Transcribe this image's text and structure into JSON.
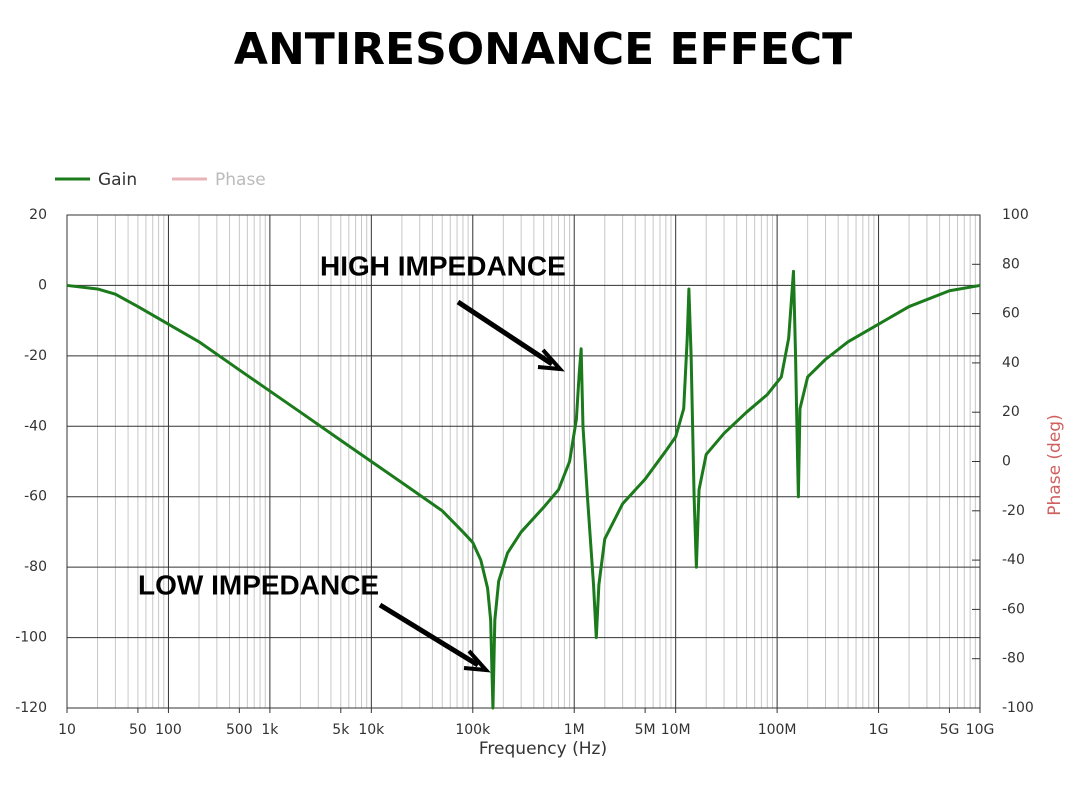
{
  "chart_data": {
    "type": "line",
    "title": "ANTIRESONANCE EFFECT",
    "xlabel": "Frequency (Hz)",
    "y2label": "Phase (deg)",
    "xscale": "log",
    "grid": true,
    "legend": "top-left",
    "annotations": [
      "HIGH IMPEDANCE",
      "LOW IMPEDANCE"
    ],
    "x": [
      10,
      20,
      30,
      50,
      100,
      200,
      500,
      1000,
      2000,
      5000,
      10000,
      20000,
      50000,
      80000,
      100000,
      120000,
      140000,
      150000,
      158000,
      165000,
      180000,
      220000,
      300000,
      500000,
      700000,
      900000,
      1050000,
      1120000,
      1170000,
      1220000,
      1350000,
      1550000,
      1650000,
      1750000,
      2000000,
      3000000,
      5000000,
      8000000,
      10000000,
      12000000,
      13000000,
      13500000,
      14200000,
      15200000,
      16000000,
      17000000,
      20000000,
      30000000,
      50000000,
      80000000,
      110000000,
      130000000,
      145000000,
      152000000,
      158000000,
      162000000,
      168000000,
      200000000,
      300000000,
      500000000,
      1000000000,
      2000000000,
      5000000000,
      10000000000
    ],
    "series": [
      {
        "name": "Gain",
        "color": "#1b7a1b",
        "values": [
          0,
          -1,
          -2.5,
          -6,
          -11,
          -16,
          -24,
          -30,
          -36,
          -44,
          -50,
          -56,
          -64,
          -70,
          -73,
          -78,
          -86,
          -95,
          -120,
          -95,
          -84,
          -76,
          -70,
          -63,
          -58,
          -50,
          -38,
          -25,
          -18,
          -40,
          -60,
          -85,
          -100,
          -85,
          -72,
          -62,
          -55,
          -47,
          -43,
          -35,
          -15,
          -1,
          -20,
          -60,
          -80,
          -58,
          -48,
          -42,
          -36,
          -31,
          -26,
          -15,
          4,
          -20,
          -45,
          -60,
          -35,
          -26,
          -21,
          -16,
          -11,
          -6,
          -1.5,
          0
        ]
      },
      {
        "name": "Phase",
        "color": "#e8b4b8",
        "axis": "y2",
        "values": [
          null,
          null,
          null,
          null,
          null,
          null,
          null,
          null,
          null,
          null,
          null,
          null,
          null,
          null,
          null,
          null,
          null,
          null,
          null,
          null,
          null,
          null,
          null,
          null,
          null,
          null,
          null,
          null,
          null,
          null,
          null,
          null,
          null,
          null,
          null,
          null,
          null,
          null,
          null,
          null,
          null,
          null,
          null,
          null,
          null,
          null,
          null,
          null,
          null,
          null,
          null,
          null,
          null,
          null,
          null,
          null,
          null,
          null,
          null,
          null,
          null,
          null,
          null,
          null
        ]
      }
    ],
    "xlim": [
      10,
      10000000000
    ],
    "xticks": [
      10,
      50,
      100,
      500,
      {
        "value": 1000,
        "label": "1k"
      },
      {
        "value": 5000,
        "label": "5k"
      },
      {
        "value": 10000,
        "label": "10k"
      },
      {
        "value": 100000,
        "label": "100k"
      },
      {
        "value": 1000000,
        "label": "1M"
      },
      {
        "value": 5000000,
        "label": "5M"
      },
      {
        "value": 10000000,
        "label": "10M"
      },
      {
        "value": 100000000,
        "label": "100M"
      },
      {
        "value": 1000000000,
        "label": "1G"
      },
      {
        "value": 5000000000,
        "label": "5G"
      },
      {
        "value": 10000000000,
        "label": "10G"
      }
    ],
    "ylim": [
      -120,
      20
    ],
    "yticks": [
      20,
      0,
      -20,
      -40,
      -60,
      -80,
      -100,
      -120
    ],
    "y2lim": [
      -100,
      100
    ],
    "y2ticks": [
      100,
      80,
      60,
      40,
      20,
      0,
      -20,
      -40,
      -60,
      -80,
      -100
    ]
  }
}
